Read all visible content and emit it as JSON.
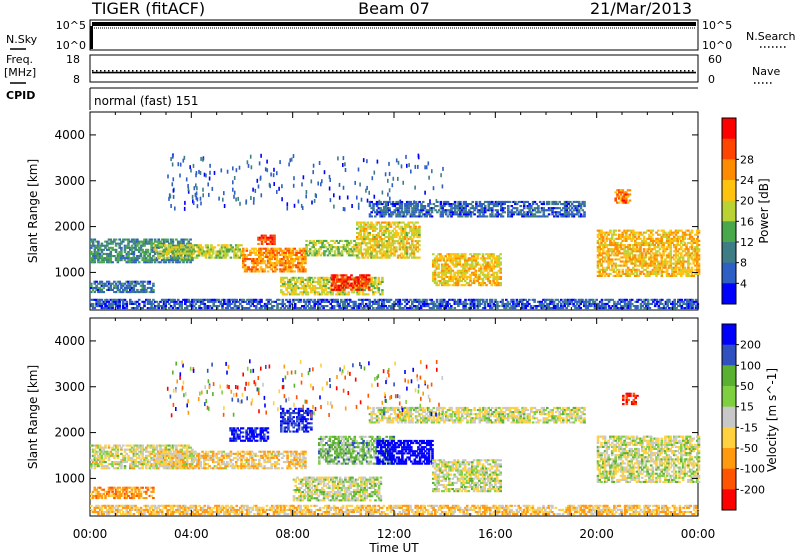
{
  "header": {
    "station": "TIGER (fitACF)",
    "beam": "Beam 07",
    "date": "21/Mar/2013"
  },
  "noise_panel": {
    "left_label": "N.Sky",
    "right_label": "N.Search",
    "left_ticks": [
      "10^5",
      "10^0"
    ],
    "right_ticks": [
      "10^5",
      "10^0"
    ]
  },
  "freq_panel": {
    "left_label_1": "Freq.",
    "left_label_2": "[MHz]",
    "right_label": "Nave",
    "left_ticks": [
      "18",
      "8"
    ],
    "right_ticks": [
      "60",
      "0"
    ],
    "freq_mhz": 11.5,
    "nave": 25
  },
  "cpid_panel": {
    "label": "CPID",
    "mode": "normal (fast) 151"
  },
  "x_axis": {
    "label": "Time UT",
    "tick_labels": [
      "00:00",
      "04:00",
      "08:00",
      "12:00",
      "16:00",
      "20:00",
      "00:00"
    ],
    "tick_hours": [
      0,
      4,
      8,
      12,
      16,
      20,
      24
    ]
  },
  "colors": {
    "power": [
      "#0000ff",
      "#2e5fc4",
      "#3e7d86",
      "#4aa84c",
      "#b9d234",
      "#ffc20e",
      "#ff8c00",
      "#ff4500",
      "#ff0000"
    ],
    "velocity_pos": [
      "#0000ff",
      "#3050c0",
      "#5ab030",
      "#7fd040"
    ],
    "velocity_ground": "#c8c8c8",
    "velocity_neg": [
      "#ffd040",
      "#ff9a10",
      "#ff5500",
      "#ff0000"
    ]
  },
  "chart_data": [
    {
      "type": "heatmap",
      "name": "power",
      "ylabel": "Slant Range [km]",
      "xlabel": "",
      "xlim_hours": [
        0,
        24
      ],
      "ylim_km": [
        180,
        4500
      ],
      "yticks": [
        1000,
        2000,
        3000,
        4000
      ],
      "colorbar": {
        "label": "Power [dB]",
        "ticks": [
          "4",
          "8",
          "12",
          "16",
          "20",
          "24",
          "28"
        ],
        "range": [
          0,
          30
        ]
      },
      "scatter_regions": [
        {
          "t0": 0.0,
          "t1": 4.0,
          "r0": 1200,
          "r1": 1700,
          "value": 9
        },
        {
          "t0": 0.0,
          "t1": 2.5,
          "r0": 550,
          "r1": 800,
          "value": 7
        },
        {
          "t0": 2.5,
          "t1": 6.0,
          "r0": 1300,
          "r1": 1600,
          "value": 15
        },
        {
          "t0": 6.0,
          "t1": 8.5,
          "r0": 1000,
          "r1": 1500,
          "value": 21
        },
        {
          "t0": 6.6,
          "t1": 7.3,
          "r0": 1600,
          "r1": 1800,
          "value": 26
        },
        {
          "t0": 8.5,
          "t1": 10.5,
          "r0": 1350,
          "r1": 1700,
          "value": 14
        },
        {
          "t0": 7.5,
          "t1": 11.5,
          "r0": 500,
          "r1": 900,
          "value": 16
        },
        {
          "t0": 9.5,
          "t1": 11.0,
          "r0": 600,
          "r1": 950,
          "value": 27
        },
        {
          "t0": 10.5,
          "t1": 13.0,
          "r0": 1300,
          "r1": 2100,
          "value": 17
        },
        {
          "t0": 11.0,
          "t1": 19.5,
          "r0": 2200,
          "r1": 2550,
          "value": 6
        },
        {
          "t0": 13.5,
          "t1": 16.2,
          "r0": 700,
          "r1": 1400,
          "value": 18
        },
        {
          "t0": 20.0,
          "t1": 24.0,
          "r0": 900,
          "r1": 1900,
          "value": 19
        },
        {
          "t0": 20.7,
          "t1": 21.3,
          "r0": 2500,
          "r1": 2800,
          "value": 23
        },
        {
          "t0": 0.0,
          "t1": 24.0,
          "r0": 200,
          "r1": 400,
          "value": 5
        }
      ]
    },
    {
      "type": "heatmap",
      "name": "velocity",
      "ylabel": "Slant Range [km]",
      "xlabel": "Time UT",
      "xlim_hours": [
        0,
        24
      ],
      "ylim_km": [
        180,
        4500
      ],
      "yticks": [
        1000,
        2000,
        3000,
        4000
      ],
      "colorbar": {
        "label": "Velocity [m s^-1]",
        "ticks": [
          "200",
          "100",
          "50",
          "15",
          "-15",
          "-50",
          "-100",
          "-200"
        ],
        "range": [
          -250,
          250
        ]
      },
      "scatter_regions": [
        {
          "t0": 0.0,
          "t1": 4.0,
          "r0": 1200,
          "r1": 1700,
          "value": -8
        },
        {
          "t0": 0.0,
          "t1": 2.5,
          "r0": 550,
          "r1": 800,
          "value": -80
        },
        {
          "t0": 2.5,
          "t1": 8.5,
          "r0": 1200,
          "r1": 1600,
          "value": -30
        },
        {
          "t0": 5.5,
          "t1": 7.0,
          "r0": 1800,
          "r1": 2100,
          "value": 180
        },
        {
          "t0": 7.5,
          "t1": 8.7,
          "r0": 2000,
          "r1": 2500,
          "value": 150
        },
        {
          "t0": 8.0,
          "t1": 11.5,
          "r0": 500,
          "r1": 1000,
          "value": 5
        },
        {
          "t0": 9.0,
          "t1": 12.0,
          "r0": 1300,
          "r1": 1900,
          "value": 40
        },
        {
          "t0": 11.3,
          "t1": 13.5,
          "r0": 1300,
          "r1": 1800,
          "value": 230
        },
        {
          "t0": 11.0,
          "t1": 19.5,
          "r0": 2200,
          "r1": 2550,
          "value": 0
        },
        {
          "t0": 13.5,
          "t1": 16.2,
          "r0": 700,
          "r1": 1400,
          "value": 0
        },
        {
          "t0": 20.0,
          "t1": 24.0,
          "r0": 900,
          "r1": 1900,
          "value": 0
        },
        {
          "t0": 21.0,
          "t1": 21.6,
          "r0": 2600,
          "r1": 2850,
          "value": -180
        },
        {
          "t0": 0.0,
          "t1": 24.0,
          "r0": 200,
          "r1": 400,
          "value": -40
        }
      ]
    }
  ]
}
